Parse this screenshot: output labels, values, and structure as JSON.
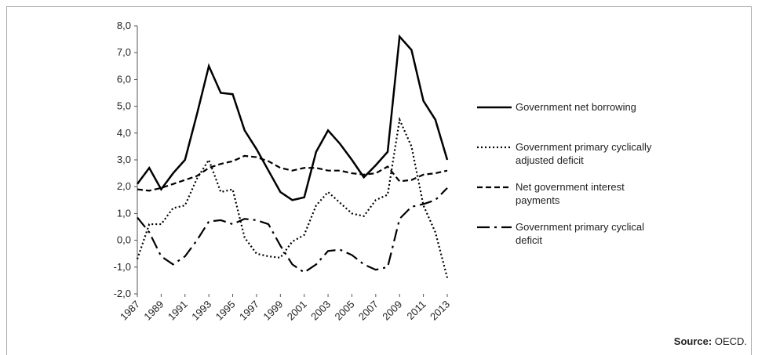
{
  "chart_data": {
    "type": "line",
    "x": [
      1987,
      1988,
      1989,
      1990,
      1991,
      1992,
      1993,
      1994,
      1995,
      1996,
      1997,
      1998,
      1999,
      2000,
      2001,
      2002,
      2003,
      2004,
      2005,
      2006,
      2007,
      2008,
      2009,
      2010,
      2011,
      2012,
      2013
    ],
    "xlim": [
      1987,
      2013
    ],
    "xticks": [
      1987,
      1989,
      1991,
      1993,
      1995,
      1997,
      1999,
      2001,
      2003,
      2005,
      2007,
      2009,
      2011,
      2013
    ],
    "ylim": [
      -2,
      8
    ],
    "yticks": [
      {
        "value": -2,
        "label": "-2,0"
      },
      {
        "value": -1,
        "label": "-1,0"
      },
      {
        "value": 0,
        "label": "0,0"
      },
      {
        "value": 1,
        "label": "1,0"
      },
      {
        "value": 2,
        "label": "2,0"
      },
      {
        "value": 3,
        "label": "3,0"
      },
      {
        "value": 4,
        "label": "4,0"
      },
      {
        "value": 5,
        "label": "5,0"
      },
      {
        "value": 6,
        "label": "6,0"
      },
      {
        "value": 7,
        "label": "7,0"
      },
      {
        "value": 8,
        "label": "8,0"
      }
    ],
    "grid": false,
    "legend": "right",
    "series": [
      {
        "name": "Government net borrowing",
        "color": "#000000",
        "style": "solid",
        "values": [
          2.1,
          2.7,
          1.9,
          2.5,
          3.0,
          4.7,
          6.5,
          5.5,
          5.45,
          4.1,
          3.4,
          2.6,
          1.8,
          1.5,
          1.6,
          3.3,
          4.1,
          3.6,
          3.0,
          2.35,
          2.8,
          3.3,
          7.6,
          7.1,
          5.2,
          4.5,
          3.0
        ]
      },
      {
        "name": "Government primary cyclically adjusted deficit",
        "color": "#000000",
        "style": "dotted",
        "values": [
          -0.7,
          0.6,
          0.6,
          1.2,
          1.3,
          2.3,
          3.0,
          1.8,
          1.9,
          0.1,
          -0.5,
          -0.6,
          -0.65,
          -0.05,
          0.2,
          1.3,
          1.8,
          1.4,
          1.0,
          0.9,
          1.5,
          1.7,
          4.5,
          3.5,
          1.3,
          0.3,
          -1.4
        ]
      },
      {
        "name": "Net government interest payments",
        "color": "#000000",
        "style": "dashed",
        "values": [
          1.9,
          1.85,
          1.95,
          2.1,
          2.25,
          2.4,
          2.7,
          2.85,
          2.95,
          3.15,
          3.1,
          2.95,
          2.7,
          2.6,
          2.7,
          2.7,
          2.6,
          2.6,
          2.5,
          2.45,
          2.5,
          2.75,
          2.2,
          2.25,
          2.45,
          2.5,
          2.6
        ]
      },
      {
        "name": "Government primary cyclical deficit",
        "color": "#000000",
        "style": "dashdot",
        "values": [
          0.85,
          0.3,
          -0.6,
          -0.9,
          -0.6,
          0.0,
          0.7,
          0.75,
          0.6,
          0.8,
          0.75,
          0.6,
          -0.2,
          -0.9,
          -1.2,
          -0.9,
          -0.4,
          -0.35,
          -0.55,
          -0.9,
          -1.1,
          -1.0,
          0.8,
          1.25,
          1.35,
          1.5,
          1.95
        ]
      }
    ],
    "source_label": "Source:",
    "source": "OECD."
  }
}
